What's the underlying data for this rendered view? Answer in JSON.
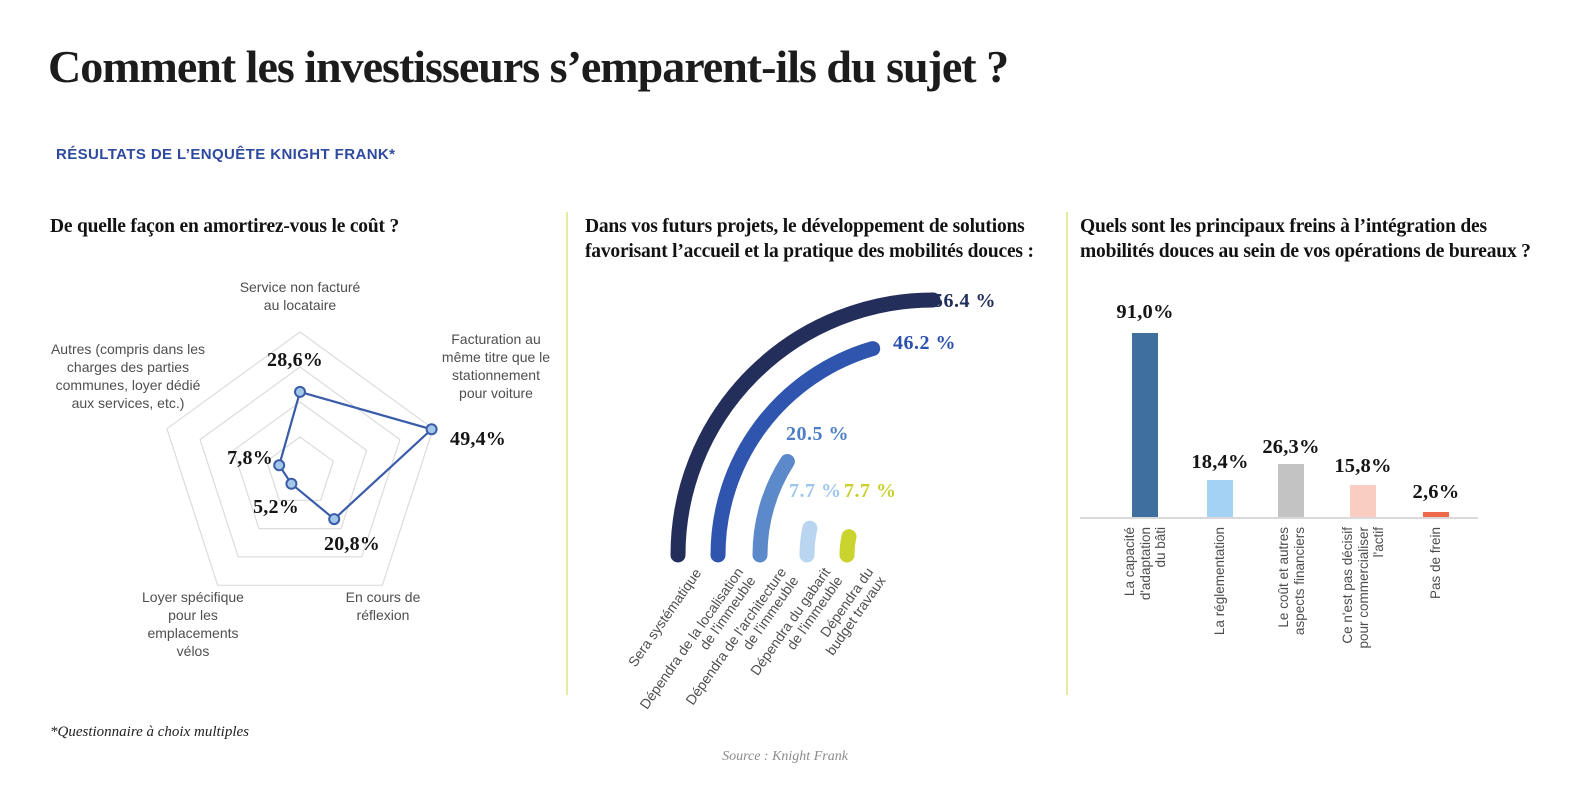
{
  "page": {
    "title": "Comment les investisseurs s’emparent-ils du sujet ?",
    "subtitle": "RÉSULTATS DE L’ENQUÊTE KNIGHT FRANK*",
    "footnote": "*Questionnaire à choix multiples",
    "source": "Source : Knight Frank",
    "colors": {
      "title_text": "#1c1c1c",
      "subtitle_blue": "#2e4a9e",
      "divider_yellow_green": "#e7eb9e",
      "category_gray": "#4f4f4f",
      "value_black": "#151515",
      "axis_baseline_gray": "#d9d9d9"
    }
  },
  "chart_data": [
    {
      "type": "radar",
      "title": "De quelle façon en amortirez-vous le coût ?",
      "unit": "%",
      "max": 50,
      "rings": [
        1,
        0.75,
        0.5,
        0.25
      ],
      "grid_color": "#dcdcdc",
      "line_color": "#3a5ca9",
      "marker_fill": "#a3c7e8",
      "axes": [
        {
          "label_lines": [
            "Service non facturé",
            "au locataire"
          ],
          "value": 28.6,
          "value_label": "28,6%"
        },
        {
          "label_lines": [
            "Facturation au",
            "même titre que le",
            "stationnement",
            "pour voiture"
          ],
          "value": 49.4,
          "value_label": "49,4%"
        },
        {
          "label_lines": [
            "En cours de",
            "réflexion"
          ],
          "value": 20.8,
          "value_label": "20,8%"
        },
        {
          "label_lines": [
            "Loyer spécifique",
            "pour les",
            "emplacements",
            "vélos"
          ],
          "value": 5.2,
          "value_label": "5,2%"
        },
        {
          "label_lines": [
            "Autres (compris dans les",
            "charges des parties",
            "communes, loyer dédié",
            "aux services, etc.)"
          ],
          "value": 7.8,
          "value_label": "7,8%"
        }
      ]
    },
    {
      "type": "arc",
      "title_lines": [
        "Dans vos futurs projets, le développement de solutions",
        "favorisant l’accueil et la pratique des mobilités douces :"
      ],
      "unit": "%",
      "max_value_sweep": 56.4,
      "series": [
        {
          "label_lines": [
            "Sera systématique"
          ],
          "value": 56.4,
          "value_label": "56.4 %",
          "color": "#242e5b",
          "label_color": "#242e5b"
        },
        {
          "label_lines": [
            "Dépendra de la localisation",
            "de l'immeuble"
          ],
          "value": 46.2,
          "value_label": "46.2 %",
          "color": "#2f55ae",
          "label_color": "#2d52ad"
        },
        {
          "label_lines": [
            "Dépendra de l'architecture",
            "de l'immeuble"
          ],
          "value": 20.5,
          "value_label": "20.5 %",
          "color": "#5c89ca",
          "label_color": "#4d7ec4"
        },
        {
          "label_lines": [
            "Dépendra du gabarit",
            "de l'immeuble"
          ],
          "value": 7.7,
          "value_label": "7.7 %",
          "color": "#b9d5f0",
          "label_color": "#9ec7ee"
        },
        {
          "label_lines": [
            "Dépendra du",
            "budget travaux"
          ],
          "value": 7.7,
          "value_label": "7.7 %",
          "color": "#cbd32f",
          "label_color": "#c9d02e"
        }
      ]
    },
    {
      "type": "bar",
      "title_lines": [
        "Quels sont les principaux freins à l’intégration des",
        "mobilités douces au sein de vos opérations de bureaux ?"
      ],
      "unit": "%",
      "ylim": [
        0,
        100
      ],
      "values": [
        91.0,
        18.4,
        26.3,
        15.8,
        2.6
      ],
      "value_labels": [
        "91,0%",
        "18,4%",
        "26,3%",
        "15,8%",
        "2,6%"
      ],
      "colors": [
        "#3f6f9e",
        "#a3d2f4",
        "#c3c3c3",
        "#f9cdc2",
        "#ee694b"
      ],
      "categories_lines": [
        [
          "La capacité",
          "d'adaptation",
          "du bâti"
        ],
        [
          "La réglementation"
        ],
        [
          "Le coût et autres",
          "aspects financiers"
        ],
        [
          "Ce n'est pas décisif",
          "pour commercialiser",
          "l'actif"
        ],
        [
          "Pas de frein"
        ]
      ]
    }
  ]
}
